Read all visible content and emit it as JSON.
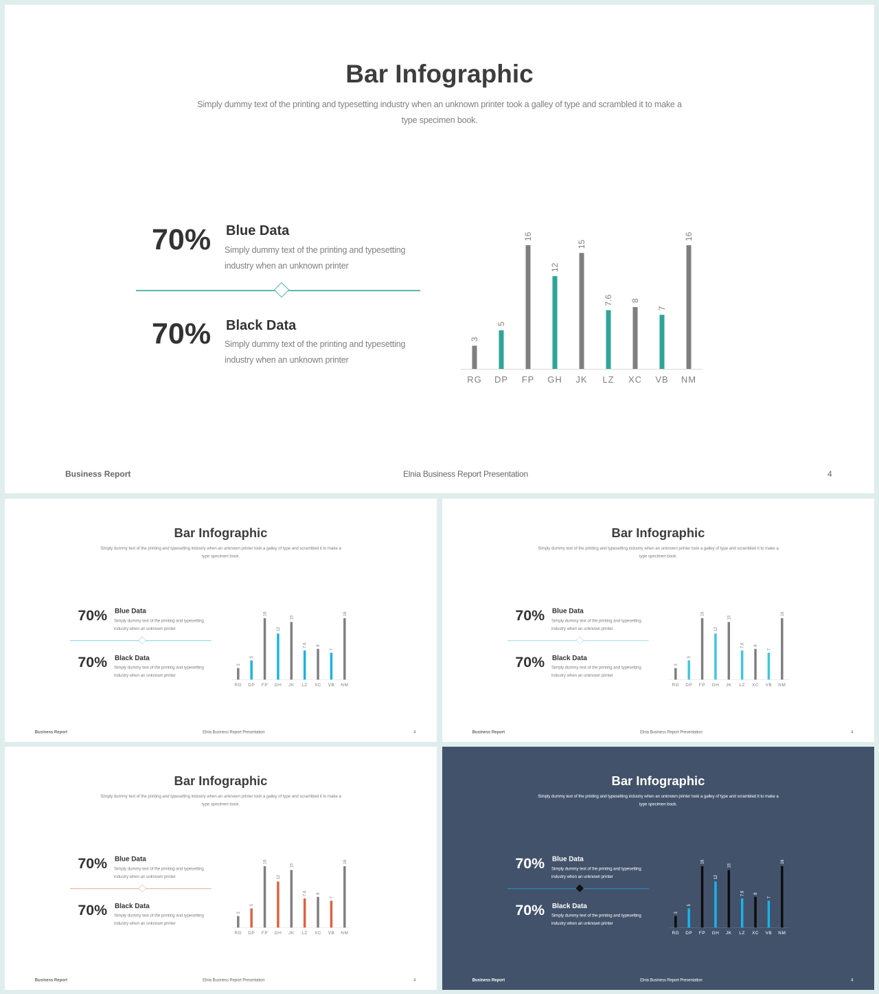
{
  "slide": {
    "title": "Bar Infographic",
    "subtitle": "Simply dummy text  of the printing and typesetting industry when an unknown printer took a galley of type  and scrambled it to make a type specimen book.",
    "block1": {
      "percent": "70%",
      "label": "Blue Data",
      "description": "Simply dummy text  of the printing and typesetting industry when an unknown printer"
    },
    "block2": {
      "percent": "70%",
      "label": "Black Data",
      "description": "Simply dummy text  of the printing and typesetting industry when an unknown printer"
    },
    "footer": {
      "left": "Business Report",
      "center": "Elnia Business Report Presentation",
      "page": "4"
    }
  },
  "chart_data": {
    "type": "bar",
    "categories": [
      "RG",
      "DP",
      "FP",
      "GH",
      "JK",
      "LZ",
      "XC",
      "VB",
      "NM"
    ],
    "values": [
      3,
      5,
      16,
      12,
      15,
      7.6,
      8,
      7,
      16
    ],
    "value_labels": [
      "3",
      "5",
      "16",
      "12",
      "15",
      "7.6",
      "8",
      "7",
      "16"
    ],
    "ylim": [
      0,
      16
    ]
  },
  "themes": [
    {
      "accent": "#2ea597",
      "neutral": "#7f7f7f",
      "line": "#5ab6b0",
      "bg": "#ffffff"
    },
    {
      "accent": "#1ab3e0",
      "neutral": "#7f7f7f",
      "line": "#7fd1e8",
      "bg": "#ffffff"
    },
    {
      "accent": "#3ec6df",
      "neutral": "#7f7f7f",
      "line": "#9fdbe8",
      "bg": "#ffffff"
    },
    {
      "accent": "#e0603f",
      "neutral": "#7f7f7f",
      "line": "#e6a99a",
      "bg": "#ffffff"
    },
    {
      "accent": "#1ab3ec",
      "neutral": "#0d0d0d",
      "line": "#2d8fd1",
      "bg": "#42526a"
    }
  ]
}
